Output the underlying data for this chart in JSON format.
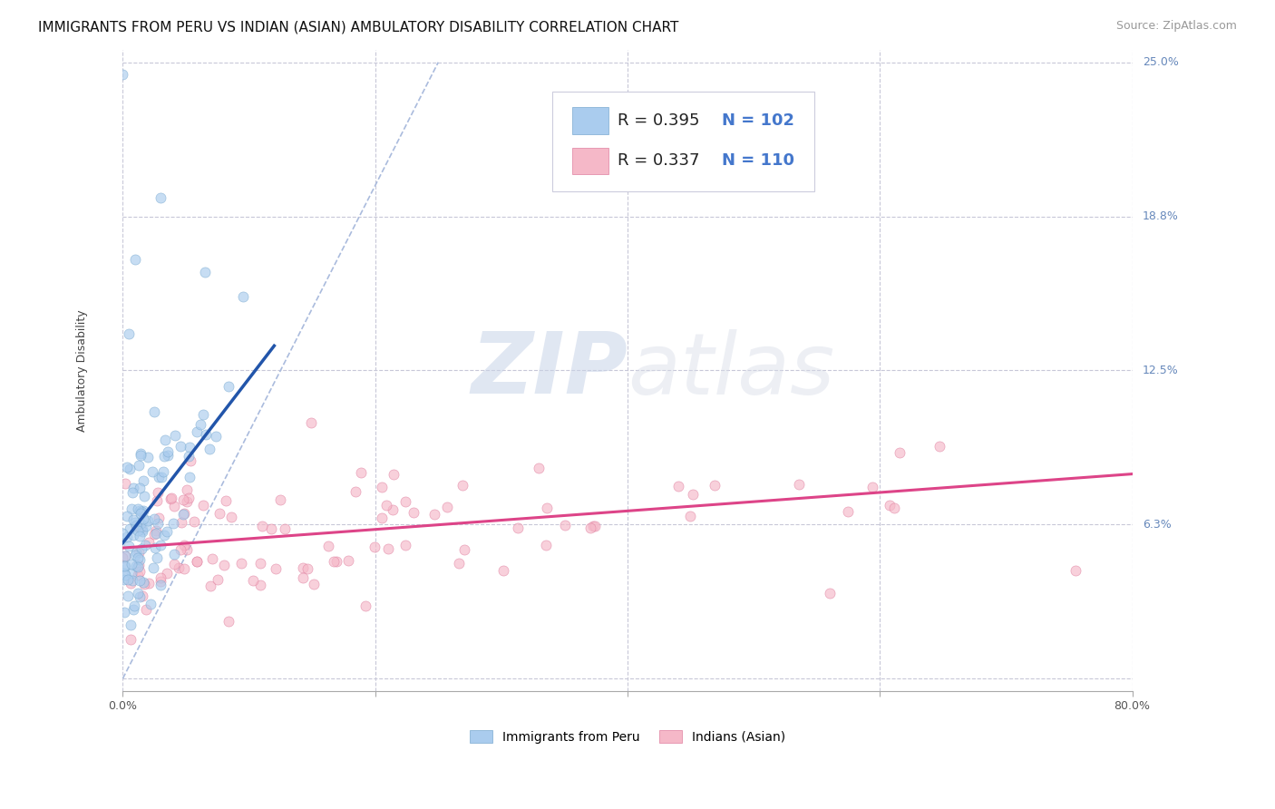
{
  "title": "IMMIGRANTS FROM PERU VS INDIAN (ASIAN) AMBULATORY DISABILITY CORRELATION CHART",
  "source": "Source: ZipAtlas.com",
  "ylabel": "Ambulatory Disability",
  "x_min": 0.0,
  "x_max": 0.8,
  "y_min": -0.005,
  "y_max": 0.255,
  "y_ticks": [
    0.0,
    0.0625,
    0.125,
    0.1875,
    0.25
  ],
  "y_tick_labels": [
    "",
    "6.3%",
    "12.5%",
    "18.8%",
    "25.0%"
  ],
  "x_ticks": [
    0.0,
    0.2,
    0.4,
    0.6,
    0.8
  ],
  "x_tick_labels": [
    "0.0%",
    "",
    "",
    "",
    "80.0%"
  ],
  "grid_color": "#c8c8d8",
  "background_color": "#ffffff",
  "watermark_zip": "ZIP",
  "watermark_atlas": "atlas",
  "series1_color": "#aaccee",
  "series1_edge": "#7aaad0",
  "series1_line_color": "#2255aa",
  "series1_label": "Immigrants from Peru",
  "series1_R": 0.395,
  "series1_N": 102,
  "series2_color": "#f5b8c8",
  "series2_edge": "#e080a0",
  "series2_line_color": "#dd4488",
  "series2_label": "Indians (Asian)",
  "series2_R": 0.337,
  "series2_N": 110,
  "legend_N_color": "#4477cc",
  "title_fontsize": 11,
  "source_fontsize": 9,
  "axis_label_fontsize": 9,
  "tick_fontsize": 9,
  "legend_fontsize": 13,
  "marker_size": 8,
  "marker_alpha": 0.65,
  "diag_color": "#aabbdd",
  "ytick_color": "#6688bb"
}
